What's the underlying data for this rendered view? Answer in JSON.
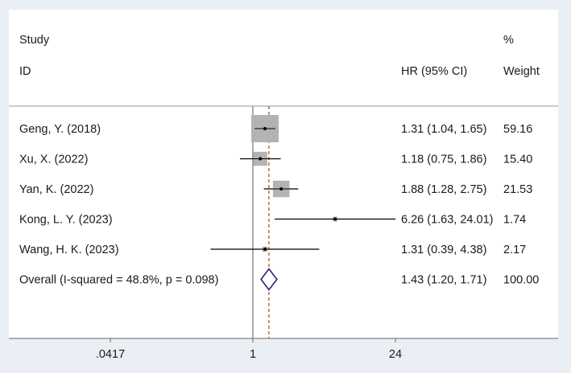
{
  "chart_data": {
    "type": "forest",
    "header": {
      "study": "Study",
      "id": "ID",
      "hr": "HR (95% CI)",
      "pct": "%",
      "weight": "Weight"
    },
    "rows": [
      {
        "label": "Geng, Y. (2018)",
        "hr": 1.31,
        "lo": 1.04,
        "hi": 1.65,
        "hr_text": "1.31 (1.04, 1.65)",
        "weight": 59.16,
        "weight_text": "59.16"
      },
      {
        "label": "Xu, X. (2022)",
        "hr": 1.18,
        "lo": 0.75,
        "hi": 1.86,
        "hr_text": "1.18 (0.75, 1.86)",
        "weight": 15.4,
        "weight_text": "15.40"
      },
      {
        "label": "Yan, K. (2022)",
        "hr": 1.88,
        "lo": 1.28,
        "hi": 2.75,
        "hr_text": "1.88 (1.28, 2.75)",
        "weight": 21.53,
        "weight_text": "21.53"
      },
      {
        "label": "Kong, L. Y. (2023)",
        "hr": 6.26,
        "lo": 1.63,
        "hi": 24.01,
        "hr_text": "6.26 (1.63, 24.01)",
        "weight": 1.74,
        "weight_text": "1.74"
      },
      {
        "label": "Wang, H. K. (2023)",
        "hr": 1.31,
        "lo": 0.39,
        "hi": 4.38,
        "hr_text": "1.31 (0.39, 4.38)",
        "weight": 2.17,
        "weight_text": "2.17"
      }
    ],
    "overall": {
      "label": "Overall  (I-squared = 48.8%, p = 0.098)",
      "hr": 1.43,
      "lo": 1.2,
      "hi": 1.71,
      "hr_text": "1.43 (1.20, 1.71)",
      "weight_text": "100.00"
    },
    "x_scale": "log",
    "x_range": [
      0.0417,
      24
    ],
    "null_line": 1,
    "x_ticks": [
      {
        "value": 0.0417,
        "label": ".0417"
      },
      {
        "value": 1,
        "label": "1"
      },
      {
        "value": 24,
        "label": "24"
      }
    ],
    "colors": {
      "background": "#e9eff4",
      "plot": "#ffffff",
      "box": "#b3b3b3",
      "diamond": "#1f1a6e",
      "null_line": "#777777",
      "overall_line": "#c0392b",
      "text": "#1a1a1a"
    }
  }
}
